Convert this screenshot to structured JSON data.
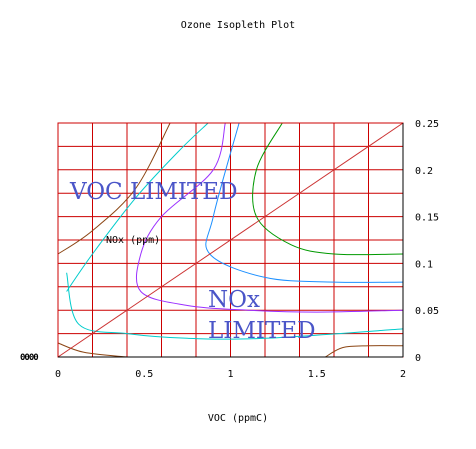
{
  "chart_data": {
    "type": "line",
    "title": "Ozone Isopleth Plot",
    "xlabel": "VOC (ppmC)",
    "ylabel": "NOx (ppm)",
    "xlim": [
      0,
      2
    ],
    "ylim": [
      0,
      0.25
    ],
    "x_ticks": [
      "0",
      "0.5",
      "1",
      "1.5",
      "2"
    ],
    "y_ticks": [
      "0",
      "0.05",
      "0.1",
      "0.15",
      "0.2",
      "0.25"
    ],
    "y_axis_side": "right",
    "left_axis_tick_text": "0000",
    "grid": true,
    "grid_color": "#cc0000",
    "annotations": [
      {
        "text": "VOC LIMITED",
        "color": "#4a55c8"
      },
      {
        "text": "NOx",
        "color": "#4a55c8"
      },
      {
        "text": "LIMITED",
        "color": "#4a55c8"
      }
    ],
    "ridge_line": {
      "color": "#cc3333",
      "points": [
        [
          0,
          0
        ],
        [
          2,
          0.25
        ]
      ]
    },
    "series": [
      {
        "color": "#8b4513",
        "points": [
          [
            0,
            0.11
          ],
          [
            0.2,
            0.135
          ],
          [
            0.45,
            0.18
          ],
          [
            0.65,
            0.25
          ]
        ]
      },
      {
        "color": "#00cccc",
        "points": [
          [
            0.05,
            0.07
          ],
          [
            0.2,
            0.11
          ],
          [
            0.45,
            0.17
          ],
          [
            0.7,
            0.22
          ],
          [
            0.87,
            0.25
          ]
        ]
      },
      {
        "color": "#9b30ff",
        "points": [
          [
            0.97,
            0.25
          ],
          [
            0.9,
            0.2
          ],
          [
            0.6,
            0.15
          ],
          [
            0.48,
            0.11
          ],
          [
            0.48,
            0.07
          ],
          [
            0.75,
            0.055
          ],
          [
            1.1,
            0.05
          ],
          [
            1.5,
            0.048
          ],
          [
            2.0,
            0.05
          ]
        ]
      },
      {
        "color": "#1e90ff",
        "points": [
          [
            1.05,
            0.25
          ],
          [
            0.9,
            0.15
          ],
          [
            0.88,
            0.11
          ],
          [
            1.2,
            0.085
          ],
          [
            1.6,
            0.08
          ],
          [
            2.0,
            0.08
          ]
        ]
      },
      {
        "color": "#009900",
        "points": [
          [
            1.3,
            0.25
          ],
          [
            1.15,
            0.2
          ],
          [
            1.15,
            0.15
          ],
          [
            1.35,
            0.12
          ],
          [
            1.6,
            0.11
          ],
          [
            2.0,
            0.11
          ]
        ]
      },
      {
        "color": "#00cccc",
        "points": [
          [
            0.05,
            0.09
          ],
          [
            0.12,
            0.035
          ],
          [
            0.4,
            0.025
          ],
          [
            0.75,
            0.02
          ],
          [
            1.2,
            0.02
          ],
          [
            2.0,
            0.03
          ]
        ]
      },
      {
        "color": "#8b4513",
        "points": [
          [
            0.0,
            0.015
          ],
          [
            0.15,
            0.005
          ],
          [
            0.4,
            0.0
          ]
        ]
      },
      {
        "color": "#8b4513",
        "points": [
          [
            1.55,
            0.0
          ],
          [
            1.65,
            0.01
          ],
          [
            1.8,
            0.012
          ],
          [
            2.0,
            0.012
          ]
        ]
      }
    ]
  }
}
